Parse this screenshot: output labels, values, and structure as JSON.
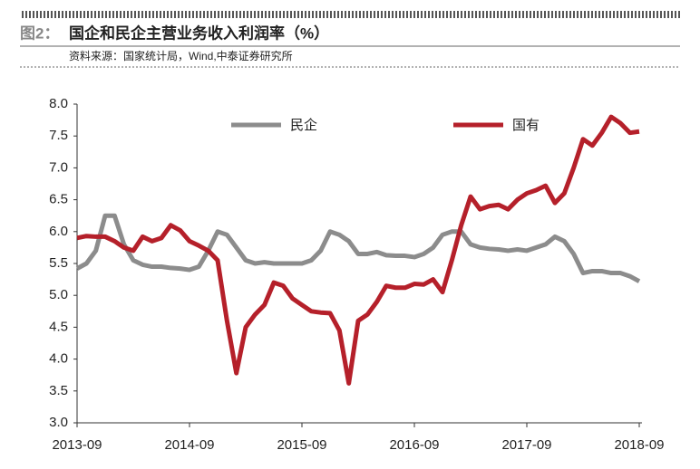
{
  "chart_data": {
    "type": "line",
    "figure_label": "图2：",
    "title": "国企和民企主营业务收入利润率（%）",
    "subtitle": "资料来源：国家统计局，Wind,中泰证券研究所",
    "x": [
      "2013-09",
      "2013-10",
      "2013-11",
      "2013-12",
      "2014-01",
      "2014-02",
      "2014-03",
      "2014-04",
      "2014-05",
      "2014-06",
      "2014-07",
      "2014-08",
      "2014-09",
      "2014-10",
      "2014-11",
      "2014-12",
      "2015-01",
      "2015-02",
      "2015-03",
      "2015-04",
      "2015-05",
      "2015-06",
      "2015-07",
      "2015-08",
      "2015-09",
      "2015-10",
      "2015-11",
      "2015-12",
      "2016-01",
      "2016-02",
      "2016-03",
      "2016-04",
      "2016-05",
      "2016-06",
      "2016-07",
      "2016-08",
      "2016-09",
      "2016-10",
      "2016-11",
      "2016-12",
      "2017-01",
      "2017-02",
      "2017-03",
      "2017-04",
      "2017-05",
      "2017-06",
      "2017-07",
      "2017-08",
      "2017-09",
      "2017-10",
      "2017-11",
      "2017-12",
      "2018-01",
      "2018-02",
      "2018-03",
      "2018-04",
      "2018-05",
      "2018-06",
      "2018-07",
      "2018-08",
      "2018-09"
    ],
    "xticks": [
      "2013-09",
      "2014-09",
      "2015-09",
      "2016-09",
      "2017-09",
      "2018-09"
    ],
    "series": [
      {
        "name": "民企",
        "color": "#8c8c8c",
        "values": [
          5.42,
          5.5,
          5.7,
          6.25,
          6.25,
          5.8,
          5.55,
          5.48,
          5.45,
          5.45,
          5.43,
          5.42,
          5.4,
          5.45,
          5.7,
          6.0,
          5.95,
          5.75,
          5.55,
          5.5,
          5.52,
          5.5,
          5.5,
          5.5,
          5.5,
          5.55,
          5.7,
          6.0,
          5.95,
          5.85,
          5.65,
          5.65,
          5.68,
          5.63,
          5.62,
          5.62,
          5.6,
          5.65,
          5.75,
          5.95,
          6.0,
          6.0,
          5.8,
          5.75,
          5.73,
          5.72,
          5.7,
          5.72,
          5.7,
          5.75,
          5.8,
          5.92,
          5.85,
          5.65,
          5.35,
          5.38,
          5.38,
          5.35,
          5.35,
          5.3,
          5.22
        ]
      },
      {
        "name": "国有",
        "color": "#b5202a",
        "values": [
          5.9,
          5.93,
          5.92,
          5.92,
          5.85,
          5.75,
          5.7,
          5.92,
          5.85,
          5.9,
          6.1,
          6.02,
          5.85,
          5.78,
          5.7,
          5.55,
          4.6,
          3.78,
          4.5,
          4.7,
          4.85,
          5.2,
          5.15,
          4.95,
          4.85,
          4.75,
          4.73,
          4.72,
          4.45,
          3.62,
          4.6,
          4.7,
          4.9,
          5.15,
          5.12,
          5.12,
          5.18,
          5.17,
          5.25,
          5.05,
          5.55,
          6.1,
          6.55,
          6.35,
          6.4,
          6.42,
          6.35,
          6.5,
          6.6,
          6.65,
          6.72,
          6.45,
          6.6,
          7.0,
          7.45,
          7.35,
          7.55,
          7.8,
          7.7,
          7.55,
          7.57
        ]
      }
    ],
    "ylim": [
      3.0,
      8.0
    ],
    "yticks": [
      {
        "value": 3,
        "label": "3.0"
      },
      {
        "value": 3.5,
        "label": "3.5"
      },
      {
        "value": 4,
        "label": "4.0"
      },
      {
        "value": 4.5,
        "label": "4.5"
      },
      {
        "value": 5,
        "label": "5.0"
      },
      {
        "value": 5.5,
        "label": "5.5"
      },
      {
        "value": 6,
        "label": "6.0"
      },
      {
        "value": 6.5,
        "label": "6.5"
      },
      {
        "value": 7,
        "label": "7.0"
      },
      {
        "value": 7.5,
        "label": "7.5"
      },
      {
        "value": 8,
        "label": "8.0"
      }
    ],
    "grid": false
  }
}
